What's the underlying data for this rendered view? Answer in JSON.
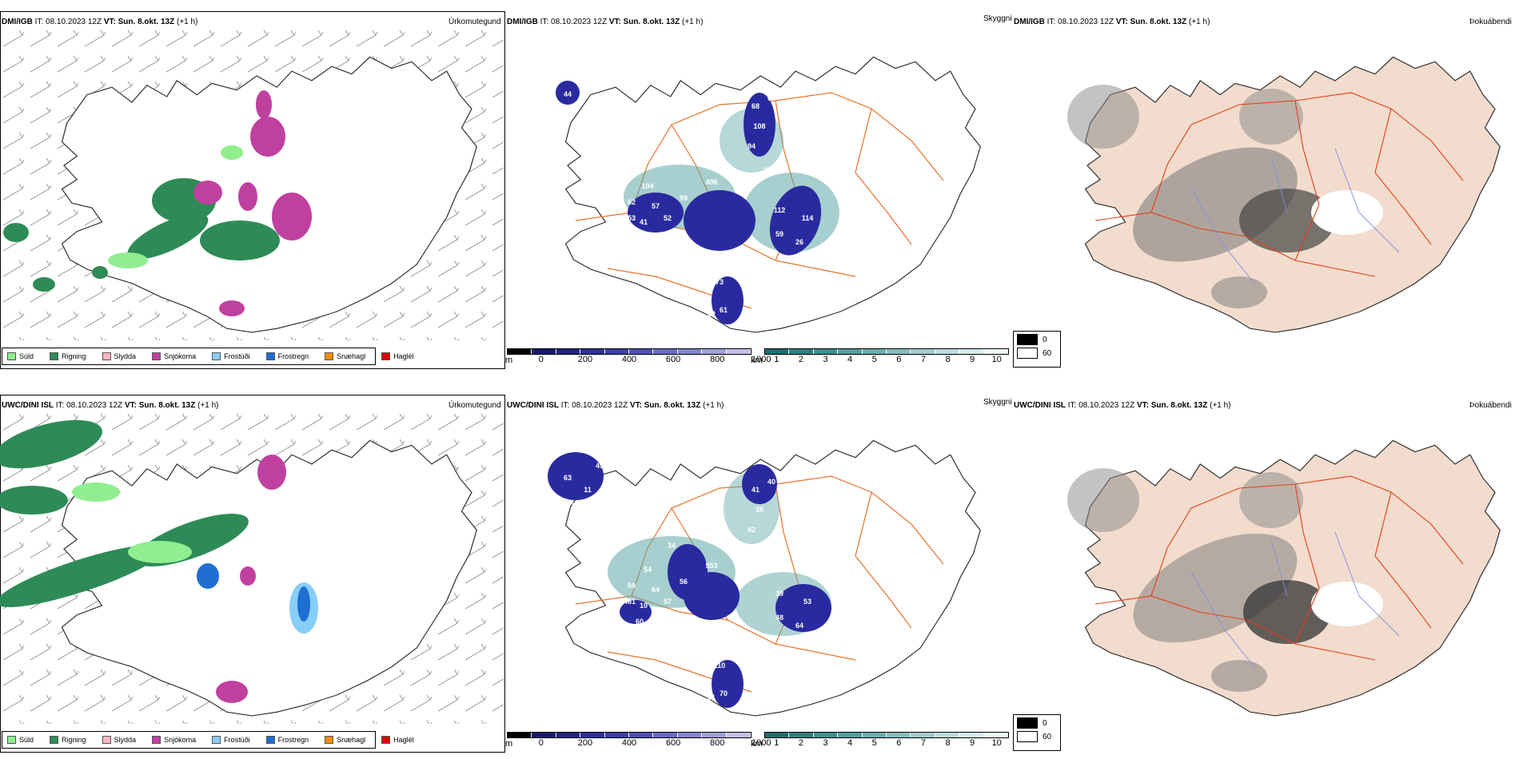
{
  "rows": [
    {
      "model": "DMI/IGB",
      "it_label": "IT:",
      "it_value": "08.10.2023 12Z",
      "vt_label": "VT:",
      "vt_value": "Sun. 8.okt. 13Z",
      "lead": "(+1 h)",
      "cloud_labels": [
        "44",
        "61",
        "49",
        "104",
        "41",
        "62",
        "53",
        "57",
        "52",
        "99",
        "31",
        "406",
        "202",
        "108",
        "68",
        "60",
        "94",
        "112",
        "114",
        "59",
        "26",
        "69",
        "142",
        "27",
        "54",
        "73",
        "62",
        "22",
        "61",
        "94",
        "34",
        "37",
        "25",
        "10"
      ]
    },
    {
      "model": "UWC/DINI ISL",
      "it_label": "IT:",
      "it_value": "08.10.2023 12Z",
      "vt_label": "VT:",
      "vt_value": "Sun. 8.okt. 13Z",
      "lead": "(+1 h)",
      "cloud_labels": [
        "63",
        "49",
        "20",
        "54",
        "10",
        "59",
        "61",
        "64",
        "57",
        "56",
        "74",
        "553",
        "40",
        "38",
        "41",
        "40",
        "42",
        "39",
        "53",
        "48",
        "64",
        "58",
        "72",
        "78",
        "76",
        "110",
        "206",
        "51",
        "70",
        "60",
        "44",
        "37",
        "34",
        "11"
      ]
    }
  ],
  "panel_types": {
    "precip": "Úrkomutegund",
    "cloud": "Skyggni",
    "fog": "Þokuábendi"
  },
  "precip_legend": [
    {
      "label": "Súld",
      "color": "#90ee90"
    },
    {
      "label": "Rigning",
      "color": "#2e8b57"
    },
    {
      "label": "Slydda",
      "color": "#ffb6c1"
    },
    {
      "label": "Snjókoma",
      "color": "#c040a0"
    },
    {
      "label": "Frostúði",
      "color": "#87cefa"
    },
    {
      "label": "Frostregn",
      "color": "#1e6fd0"
    },
    {
      "label": "Snæhagl",
      "color": "#ff8c00"
    },
    {
      "label": "Haglél",
      "color": "#e00000"
    }
  ],
  "cloudbase_bar": {
    "unit": "m",
    "ticks": [
      "0",
      "200",
      "400",
      "600",
      "800",
      "1000"
    ],
    "colors": [
      "#000000",
      "#1a1a6e",
      "#23237f",
      "#2f2f99",
      "#3d3da8",
      "#5050b4",
      "#6a6ac0",
      "#8484cc",
      "#a0a0d8",
      "#c0c0e6"
    ]
  },
  "visibility_bar": {
    "unit": "km",
    "ticks": [
      "1",
      "2",
      "3",
      "4",
      "5",
      "6",
      "7",
      "8",
      "9",
      "10"
    ],
    "colors": [
      "#1f6f6f",
      "#2f7f7f",
      "#3f8f8f",
      "#569e9e",
      "#6eadad",
      "#88bcbc",
      "#a2cccc",
      "#bcdcdc",
      "#d6ecec",
      "#eef8f8"
    ]
  },
  "fog_legend": [
    {
      "value": "0",
      "color": "#000000"
    },
    {
      "value": "60",
      "color": "#ffffff"
    }
  ],
  "colors": {
    "land_fog": "#f2dccd",
    "roads": "#e8732a",
    "rivers": "#7f8fe0",
    "rain": "#2e8b57",
    "drizzle": "#90ee90",
    "snow": "#c040a0",
    "cloud_core": "#2a2aa0",
    "cloud_vis": "#5fa8a8"
  }
}
